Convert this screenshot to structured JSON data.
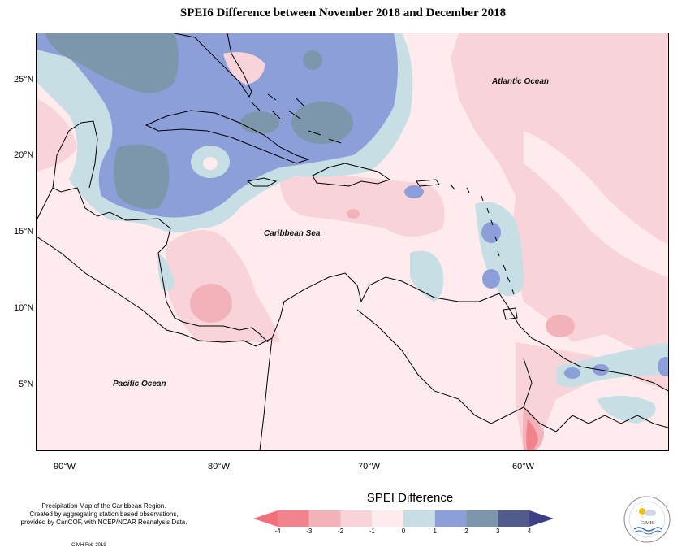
{
  "title": "SPEI6 Difference between November 2018 and December 2018",
  "lat_labels": [
    "25°N",
    "20°N",
    "15°N",
    "10°N",
    "5°N"
  ],
  "lon_labels": [
    "90°W",
    "80°W",
    "70°W",
    "60°W"
  ],
  "ocean_labels": {
    "atlantic": "Atlantic Ocean",
    "caribbean": "Caribbean Sea",
    "pacific": "Pacific Ocean"
  },
  "legend": {
    "title": "SPEI Difference",
    "ticks": [
      "-4",
      "-3",
      "-2",
      "-1",
      "0",
      "1",
      "2",
      "3",
      "4"
    ],
    "colors": [
      "#f0838c",
      "#f1b3b9",
      "#f8d4da",
      "#fdebed",
      "#c7dfe4",
      "#8d9fd9",
      "#7c97ab",
      "#525c8c"
    ],
    "arrow_low": "#f36f7c",
    "arrow_high": "#3d3f84"
  },
  "notes": {
    "line1": "Precipitation Map of the Caribbean Region.",
    "line2": "Created by aggregating station based observations,",
    "line3": "provided by CariCOF, with NCEP/NCAR Reanalysis Data.",
    "credit": "CIMH Feb-2019"
  },
  "logo": {
    "text": "CIMH"
  }
}
